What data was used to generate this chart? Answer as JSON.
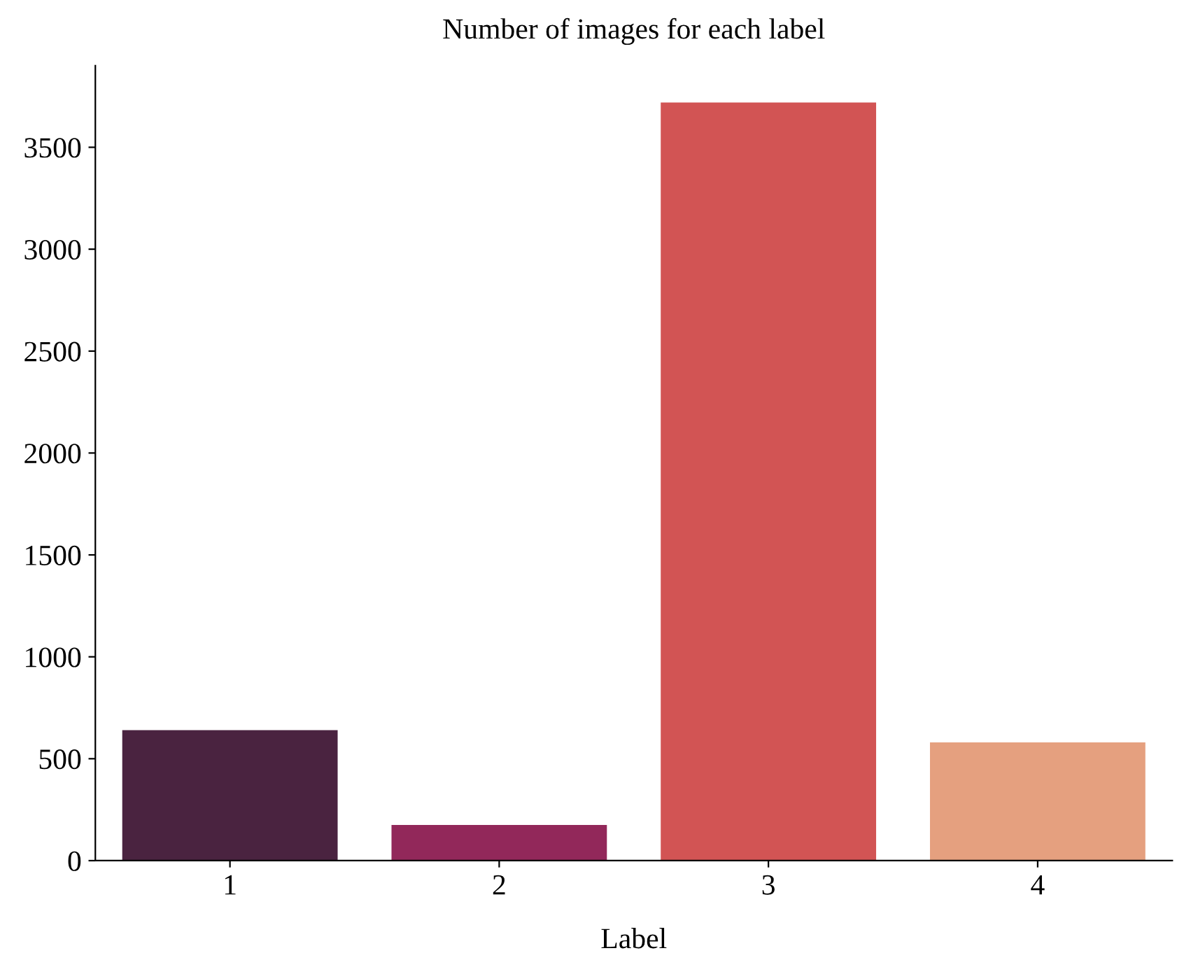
{
  "chart_data": {
    "type": "bar",
    "title": "Number of images for each label",
    "xlabel": "Label",
    "categories": [
      "1",
      "2",
      "3",
      "4"
    ],
    "values": [
      640,
      175,
      3720,
      580
    ],
    "colors": [
      "#4a2340",
      "#92285a",
      "#d25454",
      "#e5a07f"
    ],
    "ylim": [
      0,
      3900
    ],
    "yticks": [
      0,
      500,
      1000,
      1500,
      2000,
      2500,
      3000,
      3500
    ],
    "grid": false
  }
}
